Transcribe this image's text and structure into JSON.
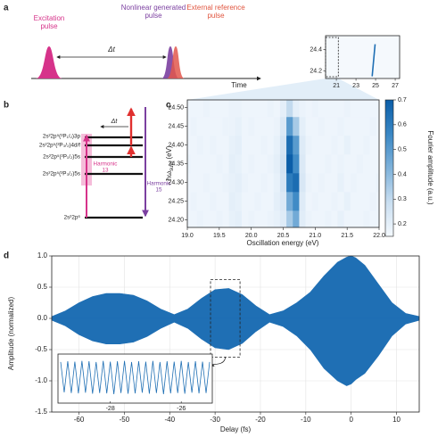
{
  "panel_labels": [
    "a",
    "b",
    "c",
    "d"
  ],
  "diagram_a": {
    "excitation_label": [
      "Excitation",
      "pulse"
    ],
    "nonlinear_label": [
      "Nonlinear generated",
      "pulse"
    ],
    "reference_label": [
      "External reference",
      "pulse"
    ],
    "delay_label": "Δt",
    "time_label": "Time"
  },
  "diagram_b": {
    "levels": [
      "2s²2p⁵(²P₁/₂)3p",
      "2s²2p⁵(²P₃/₂)4d/f",
      "2s²2p⁵(²P₁/₂)5s",
      "2s²2p⁵(²P₃/₂)5s",
      "2s²2p⁶"
    ],
    "harmonic_13": [
      "Harmonic",
      "13"
    ],
    "harmonic_15": [
      "Harmonic",
      "15"
    ],
    "delay_label": "Δt"
  },
  "chart_data": [
    {
      "type": "line",
      "series": [
        {
          "color": "#1f6fb4",
          "x": [
            24.65,
            24.8,
            24.95
          ],
          "values": [
            24.15,
            24.3,
            24.45
          ]
        }
      ],
      "xlim": [
        19.9,
        27.45
      ],
      "ylim": [
        24.13,
        24.53
      ],
      "xticks": [
        21,
        23,
        25,
        27
      ],
      "yticks": [
        24.2,
        24.4
      ],
      "highlight_xlim": [
        19.9,
        21.2
      ]
    },
    {
      "type": "heatmap",
      "x_label": "Oscillation energy (eV)",
      "y_label": [
        "ħω",
        "sum",
        "(eV)"
      ],
      "colorbar_label": "Fourier amplitude (a.u.)",
      "x": [
        19.0,
        19.1,
        19.2,
        19.3,
        19.4,
        19.5,
        19.6,
        19.7,
        19.8,
        19.9,
        20.0,
        20.1,
        20.2,
        20.3,
        20.4,
        20.5,
        20.6,
        20.7,
        20.8,
        20.9,
        21.0,
        21.1,
        21.2,
        21.3,
        21.4,
        21.5,
        21.6,
        21.7,
        21.8,
        21.9,
        22.0
      ],
      "y": [
        24.2,
        24.25,
        24.3,
        24.35,
        24.4,
        24.45,
        24.5
      ],
      "z": [
        [
          0.17,
          0.17,
          0.18,
          0.17,
          0.17,
          0.18,
          0.17,
          0.19,
          0.2,
          0.17,
          0.18,
          0.17,
          0.17,
          0.18,
          0.19,
          0.22,
          0.35,
          0.45,
          0.21,
          0.18,
          0.17,
          0.17,
          0.18,
          0.17,
          0.19,
          0.17,
          0.17,
          0.17,
          0.18,
          0.17,
          0.17
        ],
        [
          0.17,
          0.18,
          0.17,
          0.17,
          0.18,
          0.17,
          0.17,
          0.2,
          0.19,
          0.17,
          0.17,
          0.18,
          0.17,
          0.17,
          0.2,
          0.23,
          0.45,
          0.55,
          0.22,
          0.17,
          0.18,
          0.17,
          0.17,
          0.18,
          0.17,
          0.19,
          0.17,
          0.17,
          0.17,
          0.18,
          0.17
        ],
        [
          0.17,
          0.17,
          0.17,
          0.18,
          0.17,
          0.17,
          0.18,
          0.19,
          0.2,
          0.18,
          0.17,
          0.17,
          0.18,
          0.17,
          0.19,
          0.25,
          0.6,
          0.65,
          0.24,
          0.18,
          0.17,
          0.18,
          0.17,
          0.17,
          0.19,
          0.17,
          0.18,
          0.17,
          0.17,
          0.17,
          0.18
        ],
        [
          0.18,
          0.17,
          0.17,
          0.17,
          0.17,
          0.18,
          0.17,
          0.2,
          0.19,
          0.17,
          0.18,
          0.17,
          0.17,
          0.18,
          0.2,
          0.26,
          0.7,
          0.55,
          0.23,
          0.17,
          0.17,
          0.17,
          0.18,
          0.17,
          0.18,
          0.17,
          0.17,
          0.18,
          0.17,
          0.17,
          0.17
        ],
        [
          0.17,
          0.17,
          0.18,
          0.17,
          0.18,
          0.17,
          0.17,
          0.19,
          0.2,
          0.17,
          0.17,
          0.17,
          0.18,
          0.17,
          0.19,
          0.25,
          0.65,
          0.5,
          0.22,
          0.18,
          0.17,
          0.17,
          0.17,
          0.18,
          0.17,
          0.19,
          0.17,
          0.17,
          0.18,
          0.17,
          0.17
        ],
        [
          0.17,
          0.18,
          0.17,
          0.17,
          0.17,
          0.17,
          0.18,
          0.18,
          0.19,
          0.17,
          0.18,
          0.17,
          0.17,
          0.17,
          0.18,
          0.23,
          0.5,
          0.35,
          0.2,
          0.17,
          0.17,
          0.18,
          0.17,
          0.17,
          0.18,
          0.17,
          0.17,
          0.17,
          0.17,
          0.18,
          0.17
        ],
        [
          0.17,
          0.17,
          0.17,
          0.18,
          0.17,
          0.17,
          0.17,
          0.18,
          0.18,
          0.17,
          0.17,
          0.17,
          0.17,
          0.18,
          0.17,
          0.2,
          0.3,
          0.2,
          0.18,
          0.17,
          0.18,
          0.17,
          0.17,
          0.17,
          0.17,
          0.18,
          0.17,
          0.17,
          0.17,
          0.17,
          0.17
        ]
      ],
      "xlim": [
        19.0,
        22.0
      ],
      "ylim": [
        24.18,
        24.52
      ],
      "xticks": [
        {
          "value": 19,
          "label": "19.0"
        },
        19.5,
        {
          "value": 20,
          "label": "20.0"
        },
        20.5,
        {
          "value": 21,
          "label": "21.0"
        },
        21.5,
        {
          "value": 22,
          "label": "22.0"
        }
      ],
      "yticks": [
        {
          "value": 24.2,
          "label": "24.20"
        },
        24.25,
        {
          "value": 24.3,
          "label": "24.30"
        },
        24.35,
        {
          "value": 24.4,
          "label": "24.40"
        },
        24.45,
        {
          "value": 24.5,
          "label": "24.50"
        }
      ],
      "clim": [
        0.15,
        0.7
      ],
      "colorbar_ticks": [
        0.2,
        0.3,
        0.4,
        0.5,
        0.6,
        0.7
      ],
      "cmap": [
        "#f4f9fe",
        "#c9def0",
        "#7fb2da",
        "#3a87c4",
        "#0b5ea8"
      ]
    },
    {
      "type": "area",
      "x_label": "Delay (fs)",
      "y_label": "Amplitude (normalized)",
      "x": [
        -66,
        -63,
        -60,
        -57,
        -54,
        -51,
        -48,
        -45,
        -42,
        -39,
        -36,
        -33,
        -30,
        -27,
        -24,
        -21,
        -18,
        -15,
        -12,
        -9,
        -6,
        -3,
        -1,
        0,
        1,
        3,
        6,
        9,
        12,
        15
      ],
      "series": [
        {
          "color": "#1f6fb4",
          "values": [
            0.03,
            0.12,
            0.25,
            0.35,
            0.4,
            0.4,
            0.37,
            0.28,
            0.15,
            0.06,
            0.15,
            0.32,
            0.46,
            0.48,
            0.38,
            0.2,
            0.06,
            0.12,
            0.25,
            0.42,
            0.68,
            0.9,
            0.98,
            1.0,
            0.97,
            0.85,
            0.55,
            0.25,
            0.08,
            0.03
          ]
        },
        {
          "color": "#1f6fb4",
          "values": [
            -0.03,
            -0.12,
            -0.26,
            -0.36,
            -0.41,
            -0.41,
            -0.38,
            -0.29,
            -0.16,
            -0.06,
            -0.16,
            -0.33,
            -0.47,
            -0.5,
            -0.4,
            -0.21,
            -0.06,
            -0.13,
            -0.28,
            -0.5,
            -0.8,
            -1.0,
            -1.08,
            -1.05,
            -0.98,
            -0.88,
            -0.6,
            -0.28,
            -0.09,
            -0.03
          ]
        }
      ],
      "xlim": [
        -66,
        15
      ],
      "ylim": [
        -1.5,
        1.0
      ],
      "xticks": [
        -60,
        -50,
        -40,
        -30,
        -20,
        -10,
        0,
        10
      ],
      "yticks": [
        -1.5,
        {
          "value": -1,
          "label": "-1.0"
        },
        -0.5,
        {
          "value": 0,
          "label": "0.0"
        },
        0.5,
        {
          "value": 1,
          "label": "1.0"
        }
      ],
      "grid": true,
      "zoom_box": {
        "xlim": [
          -31,
          -24.5
        ],
        "ylim": [
          -0.62,
          0.62
        ]
      },
      "inset": {
        "color": "#1f6fb4",
        "x": [
          -29.4,
          -29.3,
          -29.2,
          -29.1,
          -29,
          -28.9,
          -28.8,
          -28.7,
          -28.6,
          -28.5,
          -28.4,
          -28.3,
          -28.2,
          -28.1,
          -28,
          -27.9,
          -27.8,
          -27.7,
          -27.6,
          -27.5,
          -27.4,
          -27.3,
          -27.2,
          -27.1,
          -27,
          -26.9,
          -26.8,
          -26.7,
          -26.6,
          -26.5,
          -26.4,
          -26.3,
          -26.2,
          -26.1,
          -26,
          -25.9,
          -25.8,
          -25.7,
          -25.6,
          -25.5,
          -25.4,
          -25.3,
          -25.2
        ],
        "values": [
          0.45,
          -0.42,
          0.47,
          -0.44,
          0.46,
          -0.45,
          0.48,
          -0.43,
          0.47,
          -0.46,
          0.45,
          -0.44,
          0.48,
          -0.45,
          0.46,
          -0.47,
          0.47,
          -0.44,
          0.48,
          -0.46,
          0.45,
          -0.45,
          0.47,
          -0.43,
          0.46,
          -0.46,
          0.48,
          -0.44,
          0.45,
          -0.47,
          0.47,
          -0.45,
          0.46,
          -0.44,
          0.48,
          -0.46,
          0.45,
          -0.43,
          0.47,
          -0.45,
          0.46,
          -0.44,
          0.45
        ],
        "xlim": [
          -29.4,
          -25.2
        ],
        "ylim": [
          -0.6,
          0.6
        ],
        "xticks": [
          -28,
          -26
        ]
      }
    }
  ]
}
